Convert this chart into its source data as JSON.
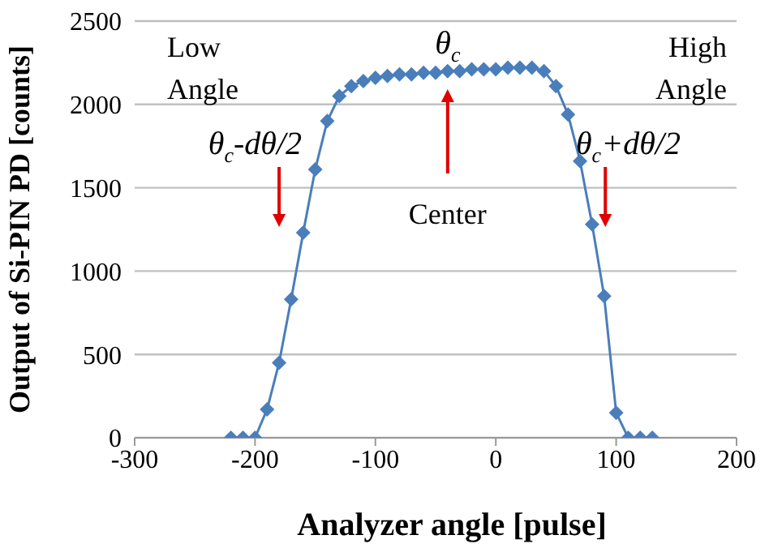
{
  "chart_data": {
    "type": "line",
    "xlabel": "Analyzer angle [pulse]",
    "ylabel": "Output of Si-PIN PD [counts]",
    "x": [
      -220,
      -210,
      -200,
      -190,
      -180,
      -170,
      -160,
      -150,
      -140,
      -130,
      -120,
      -110,
      -100,
      -90,
      -80,
      -70,
      -60,
      -50,
      -40,
      -30,
      -20,
      -10,
      0,
      10,
      20,
      30,
      40,
      50,
      60,
      70,
      80,
      90,
      100,
      110,
      120,
      130
    ],
    "series": [
      {
        "color": "#4a7ebb",
        "values": [
          0,
          0,
          0,
          170,
          450,
          830,
          1230,
          1610,
          1900,
          2050,
          2110,
          2140,
          2160,
          2170,
          2180,
          2180,
          2190,
          2190,
          2200,
          2200,
          2210,
          2210,
          2210,
          2220,
          2220,
          2220,
          2200,
          2110,
          1940,
          1660,
          1280,
          850,
          150,
          0,
          0,
          0
        ]
      }
    ],
    "xlim": [
      -300,
      200
    ],
    "xticks": [
      -300,
      -200,
      -100,
      0,
      100,
      200
    ],
    "ylim": [
      0,
      2500
    ],
    "yticks": [
      0,
      500,
      1000,
      1500,
      2000,
      2500
    ],
    "grid": "y",
    "legend": false,
    "marker": "diamond",
    "line_style": "solid",
    "annotations": [
      "Low Angle",
      "High Angle",
      "θ$_{c}$",
      "θ$_{c}$-dθ/2",
      "θ$_{c}$+dθ/2",
      "Center"
    ]
  }
}
